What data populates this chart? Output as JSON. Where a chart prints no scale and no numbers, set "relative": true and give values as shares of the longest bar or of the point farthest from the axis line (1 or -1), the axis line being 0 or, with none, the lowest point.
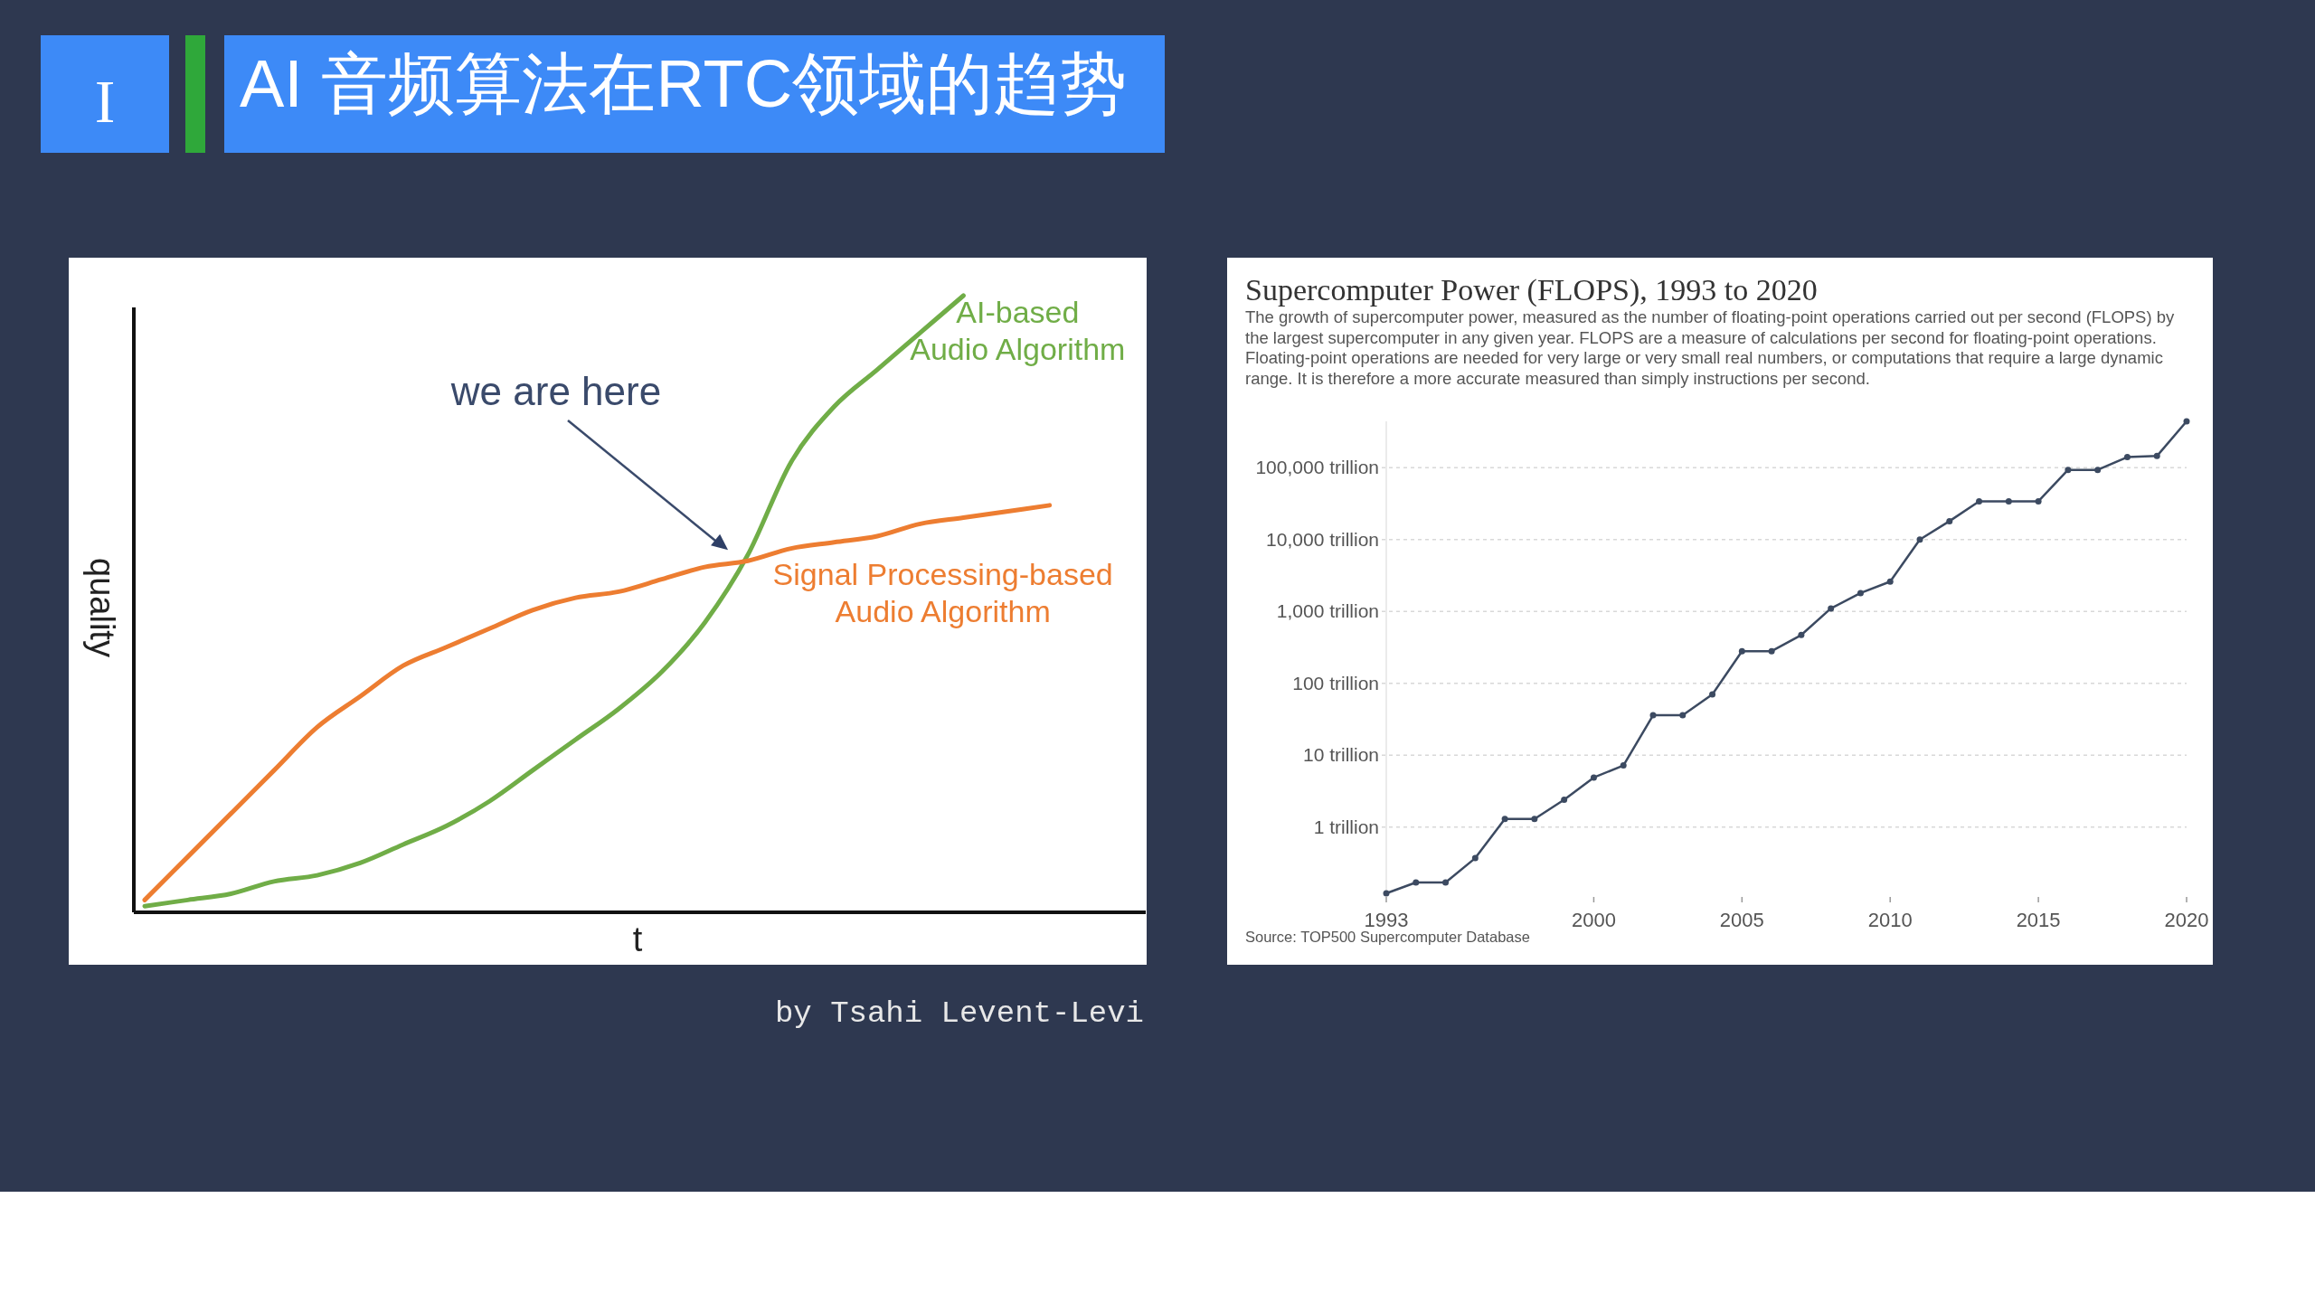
{
  "chart_data": [
    {
      "type": "other",
      "title": "AI 音频算法在RTC领域的趋势",
      "annotations": [
        "I"
      ]
    },
    {
      "type": "line",
      "relative": true,
      "xlabel": "t",
      "ylabel": "quality",
      "legend": false,
      "categories": [
        null,
        null,
        null,
        null,
        null,
        null,
        null,
        null,
        null,
        null,
        null,
        null,
        null,
        null,
        null,
        null,
        null,
        null,
        null,
        null,
        null,
        null
      ],
      "series": [
        {
          "name": "AI-based\nAudio Algorithm",
          "color": "#70ad47",
          "values": [
            0.01,
            0.02,
            0.03,
            0.05,
            0.06,
            0.08,
            0.11,
            0.14,
            0.18,
            0.23,
            0.28,
            0.33,
            0.39,
            0.47,
            0.58,
            0.73,
            0.82,
            0.88,
            0.94,
            1.0,
            null,
            null
          ]
        },
        {
          "name": "Signal Processing-based\nAudio Algorithm",
          "color": "#ed7d31",
          "values": [
            0.02,
            0.09,
            0.16,
            0.23,
            0.3,
            0.35,
            0.4,
            0.43,
            0.46,
            0.49,
            0.51,
            0.52,
            0.54,
            0.56,
            0.57,
            0.59,
            0.6,
            0.61,
            0.63,
            0.64,
            0.65,
            0.66
          ]
        }
      ],
      "annotations": [
        "we are here",
        "by Tsahi Levent-Levi"
      ]
    },
    {
      "type": "line",
      "title": "Supercomputer Power (FLOPS), 1993 to 2020",
      "subtitle": "The growth of supercomputer power, measured as the number of floating-point operations carried out per second (FLOPS) by the largest supercomputer in any given year. FLOPS are a measure of calculations per second for floating-point operations. Floating-point operations are needed for very large or very small real numbers, or computations that require a large dynamic range. It is therefore a more accurate measured than simply instructions per second.",
      "log": "y",
      "grid": "y",
      "marker": "circle",
      "line_style": "solid",
      "x": [
        1993,
        1994,
        1995,
        1996,
        1997,
        1998,
        1999,
        2000,
        2001,
        2002,
        2003,
        2004,
        2005,
        2006,
        2007,
        2008,
        2009,
        2010,
        2011,
        2012,
        2013,
        2014,
        2015,
        2016,
        2017,
        2018,
        2019,
        2020
      ],
      "series": [
        {
          "color": "#3c4a61",
          "values": [
            0.12,
            0.17,
            0.17,
            0.37,
            1.3,
            1.3,
            2.4,
            4.9,
            7.2,
            36,
            36,
            70,
            280,
            280,
            470,
            1100,
            1800,
            2600,
            10000,
            18000,
            34000,
            34000,
            34000,
            93000,
            93000,
            140000,
            145000,
            440000
          ]
        }
      ],
      "xlim": [
        1993,
        2020
      ],
      "ylim": [
        0.12,
        440000
      ],
      "xticks": [
        1993,
        2000,
        2005,
        2010,
        2015,
        2020
      ],
      "yticks": [
        {
          "value": 1,
          "label": "1 trillion"
        },
        {
          "value": 10,
          "label": "10 trillion"
        },
        {
          "value": 100,
          "label": "100 trillion"
        },
        {
          "value": 1000,
          "label": "1,000 trillion"
        },
        {
          "value": 10000,
          "label": "10,000 trillion"
        },
        {
          "value": 100000,
          "label": "100,000 trillion"
        }
      ],
      "annotations": [
        "Source: TOP500 Supercomputer Database"
      ]
    }
  ]
}
